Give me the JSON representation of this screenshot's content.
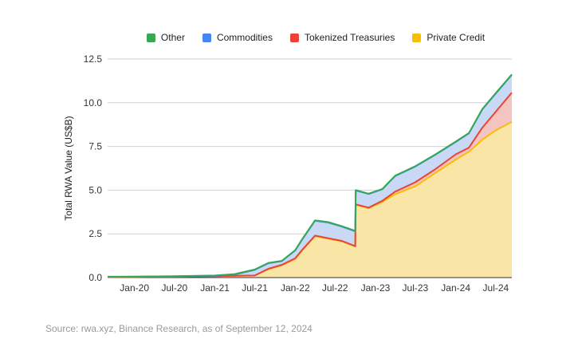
{
  "chart_data": {
    "type": "area",
    "stacked": true,
    "title": "",
    "xlabel": "",
    "ylabel": "Total RWA Value (US$B)",
    "ylim": [
      0,
      12.5
    ],
    "yticks": [
      "0.0",
      "2.5",
      "5.0",
      "7.5",
      "10.0",
      "12.5"
    ],
    "xticks": [
      {
        "label": "Jan-20",
        "date": "2020-01-01"
      },
      {
        "label": "Jul-20",
        "date": "2020-07-01"
      },
      {
        "label": "Jan-21",
        "date": "2021-01-01"
      },
      {
        "label": "Jul-21",
        "date": "2021-07-01"
      },
      {
        "label": "Jan-22",
        "date": "2022-01-01"
      },
      {
        "label": "Jul-22",
        "date": "2022-07-01"
      },
      {
        "label": "Jan-23",
        "date": "2023-01-01"
      },
      {
        "label": "Jul-23",
        "date": "2023-07-01"
      },
      {
        "label": "Jan-24",
        "date": "2024-01-01"
      },
      {
        "label": "Jul-24",
        "date": "2024-07-01"
      }
    ],
    "xrange": [
      "2019-09-01",
      "2024-09-12"
    ],
    "grid": true,
    "legend_position": "top",
    "x": [
      "2019-09-01",
      "2020-01-01",
      "2020-07-01",
      "2021-01-01",
      "2021-04-01",
      "2021-07-01",
      "2021-09-01",
      "2021-11-01",
      "2022-01-01",
      "2022-02-01",
      "2022-04-01",
      "2022-06-01",
      "2022-08-01",
      "2022-10-01",
      "2022-10-03",
      "2022-12-01",
      "2023-02-01",
      "2023-04-01",
      "2023-07-01",
      "2023-10-01",
      "2024-01-01",
      "2024-03-01",
      "2024-05-01",
      "2024-07-01",
      "2024-09-12"
    ],
    "series": [
      {
        "name": "Private Credit",
        "color": "#fbbc04",
        "fill": "#f9e6a6",
        "values": [
          0.03,
          0.04,
          0.06,
          0.08,
          0.1,
          0.12,
          0.48,
          0.7,
          1.07,
          1.54,
          2.37,
          2.22,
          2.07,
          1.77,
          4.16,
          3.97,
          4.33,
          4.77,
          5.22,
          5.99,
          6.75,
          7.2,
          7.89,
          8.42,
          8.91
        ]
      },
      {
        "name": "Tokenized Treasuries",
        "color": "#ea4335",
        "fill": "#f4c4c0",
        "values": [
          0,
          0,
          0,
          0,
          0,
          0,
          0.02,
          0.03,
          0.03,
          0.03,
          0.03,
          0.03,
          0.03,
          0.03,
          0.03,
          0.03,
          0.06,
          0.15,
          0.23,
          0.22,
          0.3,
          0.23,
          0.68,
          1.07,
          1.67
        ]
      },
      {
        "name": "Commodities",
        "color": "#4285f4",
        "fill": "#c9d9f5",
        "values": [
          0.01,
          0.01,
          0.01,
          0.02,
          0.08,
          0.32,
          0.32,
          0.21,
          0.45,
          0.59,
          0.85,
          0.9,
          0.82,
          0.85,
          0.79,
          0.78,
          0.66,
          0.89,
          0.9,
          0.82,
          0.71,
          0.82,
          1.05,
          1.04,
          1.02
        ]
      },
      {
        "name": "Other",
        "color": "#34a853",
        "fill": "#bfe3c7",
        "values": [
          0.01,
          0.01,
          0.01,
          0.02,
          0.02,
          0.02,
          0.02,
          0.02,
          0.02,
          0.02,
          0.02,
          0.02,
          0.02,
          0.02,
          0.02,
          0.02,
          0.02,
          0.02,
          0.02,
          0.02,
          0.02,
          0.02,
          0.02,
          0.02,
          0.02
        ]
      }
    ],
    "legend": [
      "Other",
      "Commodities",
      "Tokenized Treasuries",
      "Private Credit"
    ]
  },
  "source": "Source: rwa.xyz, Binance Research, as of September 12, 2024"
}
